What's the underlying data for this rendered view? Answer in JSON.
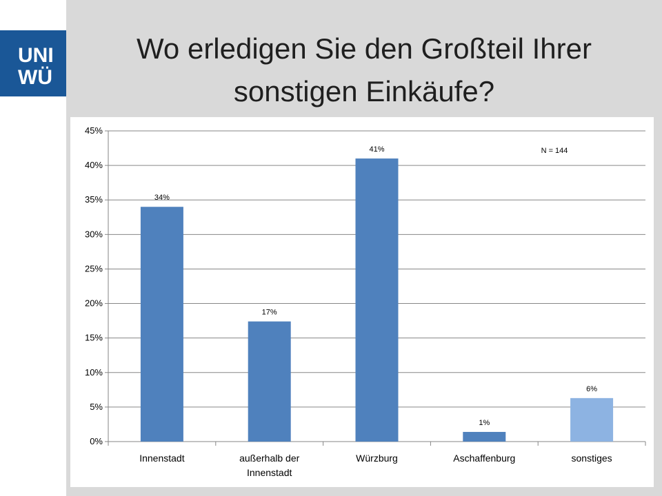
{
  "slide": {
    "title_line1": "Wo erledigen Sie den Großteil Ihrer",
    "title_line2": "sonstigen Einkäufe?",
    "logo_line1": "UNI",
    "logo_line2": "WÜ"
  },
  "colors": {
    "bar": "#4f81bd",
    "bar_highlight": "#8db3e2",
    "logo": "#1a5797",
    "background": "#d9d9d9"
  },
  "chart_data": {
    "type": "bar",
    "categories": [
      "Innenstadt",
      "außerhalb der Innenstadt",
      "Würzburg",
      "Aschaffenburg",
      "sonstiges"
    ],
    "category_label_lines": [
      [
        "Innenstadt"
      ],
      [
        "außerhalb der",
        "Innenstadt"
      ],
      [
        "Würzburg"
      ],
      [
        "Aschaffenburg"
      ],
      [
        "sonstiges"
      ]
    ],
    "values": [
      34,
      17.4,
      41,
      1.4,
      6.3
    ],
    "data_labels": [
      "34%",
      "17%",
      "41%",
      "1%",
      "6%"
    ],
    "bar_colors": [
      "#4f81bd",
      "#4f81bd",
      "#4f81bd",
      "#4f81bd",
      "#8db3e2"
    ],
    "ylim": [
      0,
      45
    ],
    "yticks": [
      0,
      5,
      10,
      15,
      20,
      25,
      30,
      35,
      40,
      45
    ],
    "ytick_labels": [
      "0%",
      "5%",
      "10%",
      "15%",
      "20%",
      "25%",
      "30%",
      "35%",
      "40%",
      "45%"
    ],
    "grid": true,
    "annotation": "N = 144",
    "xlabel": "",
    "ylabel": ""
  }
}
